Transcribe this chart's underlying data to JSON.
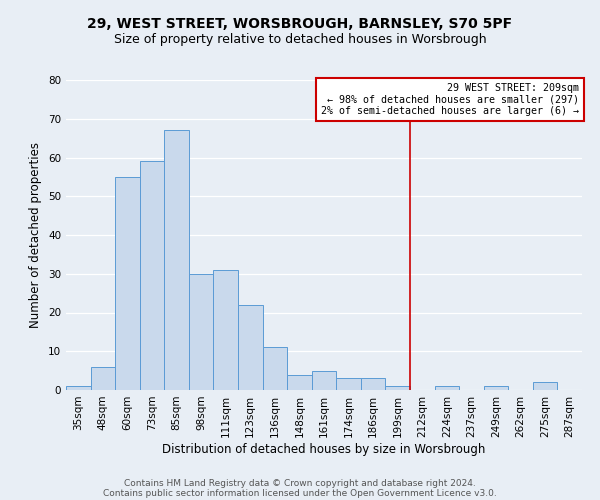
{
  "title": "29, WEST STREET, WORSBROUGH, BARNSLEY, S70 5PF",
  "subtitle": "Size of property relative to detached houses in Worsbrough",
  "xlabel": "Distribution of detached houses by size in Worsbrough",
  "ylabel": "Number of detached properties",
  "bin_labels": [
    "35sqm",
    "48sqm",
    "60sqm",
    "73sqm",
    "85sqm",
    "98sqm",
    "111sqm",
    "123sqm",
    "136sqm",
    "148sqm",
    "161sqm",
    "174sqm",
    "186sqm",
    "199sqm",
    "212sqm",
    "224sqm",
    "237sqm",
    "249sqm",
    "262sqm",
    "275sqm",
    "287sqm"
  ],
  "bar_heights": [
    1,
    6,
    55,
    59,
    67,
    30,
    31,
    22,
    11,
    4,
    5,
    3,
    3,
    1,
    0,
    1,
    0,
    1,
    0,
    2,
    0
  ],
  "bar_color": "#c9d9ec",
  "bar_edge_color": "#5b9bd5",
  "ylim": [
    0,
    80
  ],
  "yticks": [
    0,
    10,
    20,
    30,
    40,
    50,
    60,
    70,
    80
  ],
  "vline_x": 13.5,
  "vline_color": "#cc0000",
  "box_text_line1": "29 WEST STREET: 209sqm",
  "box_text_line2": "← 98% of detached houses are smaller (297)",
  "box_text_line3": "2% of semi-detached houses are larger (6) →",
  "box_color": "#ffffff",
  "box_edge_color": "#cc0000",
  "footer_line1": "Contains HM Land Registry data © Crown copyright and database right 2024.",
  "footer_line2": "Contains public sector information licensed under the Open Government Licence v3.0.",
  "background_color": "#e8eef5",
  "grid_color": "#ffffff",
  "title_fontsize": 10,
  "subtitle_fontsize": 9,
  "axis_label_fontsize": 8.5,
  "tick_fontsize": 7.5,
  "footer_fontsize": 6.5
}
